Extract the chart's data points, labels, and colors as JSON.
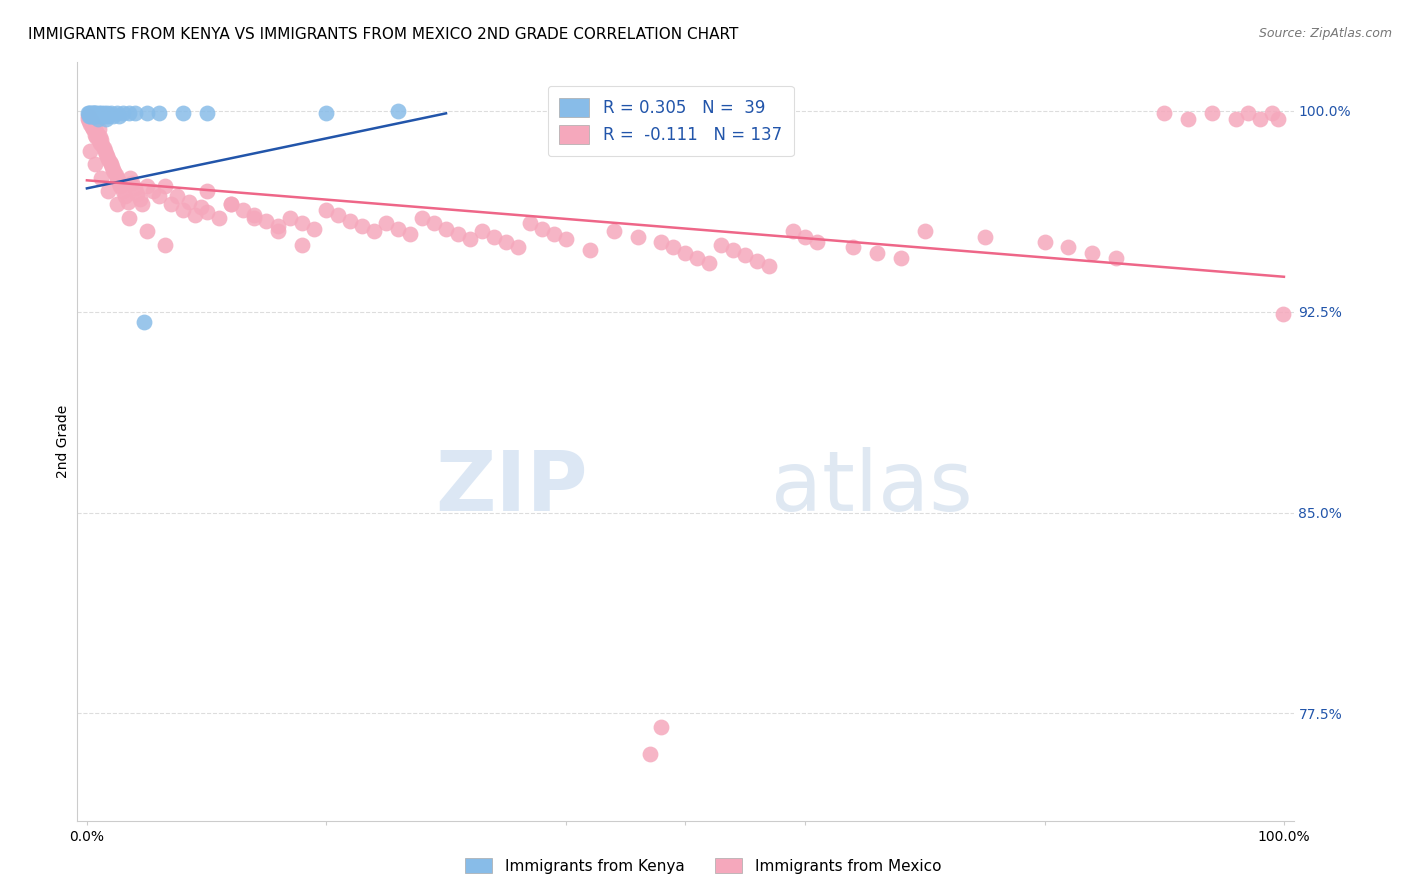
{
  "title": "IMMIGRANTS FROM KENYA VS IMMIGRANTS FROM MEXICO 2ND GRADE CORRELATION CHART",
  "source": "Source: ZipAtlas.com",
  "ylabel": "2nd Grade",
  "ylim": [
    0.735,
    1.018
  ],
  "xlim": [
    -0.008,
    1.008
  ],
  "legend_line1": "R = 0.305   N =  39",
  "legend_line2": "R =  -0.111   N = 137",
  "kenya_color": "#88bce8",
  "mexico_color": "#f5a8bc",
  "kenya_line_color": "#2255aa",
  "mexico_line_color": "#ee6688",
  "watermark_zip": "ZIP",
  "watermark_atlas": "atlas",
  "background_color": "#ffffff",
  "grid_color": "#dddddd",
  "ytick_positions": [
    0.775,
    0.85,
    0.925,
    1.0
  ],
  "ytick_labels": [
    "77.5%",
    "85.0%",
    "92.5%",
    "100.0%"
  ],
  "xtick_positions": [
    0.0,
    0.2,
    0.4,
    0.5,
    0.6,
    0.8,
    1.0
  ],
  "xtick_labels": [
    "0.0%",
    "",
    "",
    "",
    "",
    "",
    "100.0%"
  ],
  "kenya_x": [
    0.001,
    0.002,
    0.002,
    0.003,
    0.003,
    0.004,
    0.004,
    0.005,
    0.005,
    0.006,
    0.006,
    0.007,
    0.007,
    0.008,
    0.008,
    0.009,
    0.01,
    0.011,
    0.012,
    0.013,
    0.014,
    0.015,
    0.016,
    0.017,
    0.018,
    0.02,
    0.022,
    0.025,
    0.027,
    0.03,
    0.035,
    0.04,
    0.05,
    0.06,
    0.08,
    0.1,
    0.2,
    0.26,
    0.048
  ],
  "kenya_y": [
    0.999,
    0.999,
    0.998,
    0.999,
    0.998,
    0.999,
    0.998,
    0.999,
    0.998,
    0.999,
    0.998,
    0.999,
    0.998,
    0.999,
    0.998,
    0.997,
    0.999,
    0.998,
    0.999,
    0.998,
    0.999,
    0.998,
    0.997,
    0.999,
    0.998,
    0.999,
    0.998,
    0.999,
    0.998,
    0.999,
    0.999,
    0.999,
    0.999,
    0.999,
    0.999,
    0.999,
    0.999,
    1.0,
    0.921
  ],
  "mexico_x": [
    0.001,
    0.001,
    0.002,
    0.002,
    0.003,
    0.003,
    0.004,
    0.004,
    0.005,
    0.005,
    0.006,
    0.006,
    0.007,
    0.007,
    0.008,
    0.008,
    0.009,
    0.01,
    0.01,
    0.011,
    0.011,
    0.012,
    0.013,
    0.014,
    0.015,
    0.016,
    0.017,
    0.018,
    0.019,
    0.02,
    0.021,
    0.022,
    0.023,
    0.024,
    0.025,
    0.026,
    0.027,
    0.028,
    0.03,
    0.032,
    0.034,
    0.036,
    0.038,
    0.04,
    0.042,
    0.044,
    0.046,
    0.05,
    0.055,
    0.06,
    0.065,
    0.07,
    0.075,
    0.08,
    0.085,
    0.09,
    0.095,
    0.1,
    0.11,
    0.12,
    0.13,
    0.14,
    0.15,
    0.16,
    0.17,
    0.18,
    0.19,
    0.2,
    0.21,
    0.22,
    0.23,
    0.24,
    0.25,
    0.26,
    0.27,
    0.28,
    0.29,
    0.3,
    0.31,
    0.32,
    0.33,
    0.34,
    0.35,
    0.36,
    0.37,
    0.38,
    0.39,
    0.4,
    0.42,
    0.44,
    0.46,
    0.48,
    0.49,
    0.5,
    0.51,
    0.52,
    0.53,
    0.54,
    0.55,
    0.56,
    0.57,
    0.59,
    0.6,
    0.61,
    0.64,
    0.66,
    0.68,
    0.7,
    0.75,
    0.8,
    0.82,
    0.84,
    0.86,
    0.9,
    0.92,
    0.94,
    0.96,
    0.97,
    0.98,
    0.99,
    0.995,
    0.003,
    0.007,
    0.012,
    0.018,
    0.025,
    0.035,
    0.05,
    0.065,
    0.47,
    0.48,
    0.1,
    0.12,
    0.14,
    0.16,
    0.18,
    0.999
  ],
  "mexico_y": [
    0.998,
    0.997,
    0.998,
    0.996,
    0.997,
    0.995,
    0.996,
    0.994,
    0.995,
    0.993,
    0.994,
    0.993,
    0.993,
    0.991,
    0.992,
    0.99,
    0.991,
    0.993,
    0.989,
    0.99,
    0.988,
    0.989,
    0.987,
    0.986,
    0.985,
    0.984,
    0.983,
    0.982,
    0.981,
    0.98,
    0.979,
    0.978,
    0.977,
    0.976,
    0.975,
    0.974,
    0.973,
    0.972,
    0.97,
    0.968,
    0.966,
    0.975,
    0.973,
    0.971,
    0.969,
    0.967,
    0.965,
    0.972,
    0.97,
    0.968,
    0.972,
    0.965,
    0.968,
    0.963,
    0.966,
    0.961,
    0.964,
    0.962,
    0.96,
    0.965,
    0.963,
    0.961,
    0.959,
    0.957,
    0.96,
    0.958,
    0.956,
    0.963,
    0.961,
    0.959,
    0.957,
    0.955,
    0.958,
    0.956,
    0.954,
    0.96,
    0.958,
    0.956,
    0.954,
    0.952,
    0.955,
    0.953,
    0.951,
    0.949,
    0.958,
    0.956,
    0.954,
    0.952,
    0.948,
    0.955,
    0.953,
    0.951,
    0.949,
    0.947,
    0.945,
    0.943,
    0.95,
    0.948,
    0.946,
    0.944,
    0.942,
    0.955,
    0.953,
    0.951,
    0.949,
    0.947,
    0.945,
    0.955,
    0.953,
    0.951,
    0.949,
    0.947,
    0.945,
    0.999,
    0.997,
    0.999,
    0.997,
    0.999,
    0.997,
    0.999,
    0.997,
    0.985,
    0.98,
    0.975,
    0.97,
    0.965,
    0.96,
    0.955,
    0.95,
    0.76,
    0.77,
    0.97,
    0.965,
    0.96,
    0.955,
    0.95,
    0.924
  ],
  "mexico_trend_x": [
    0.0,
    1.0
  ],
  "mexico_trend_y": [
    0.974,
    0.938
  ],
  "kenya_trend_x": [
    0.0,
    0.3
  ],
  "kenya_trend_y": [
    0.971,
    0.999
  ]
}
